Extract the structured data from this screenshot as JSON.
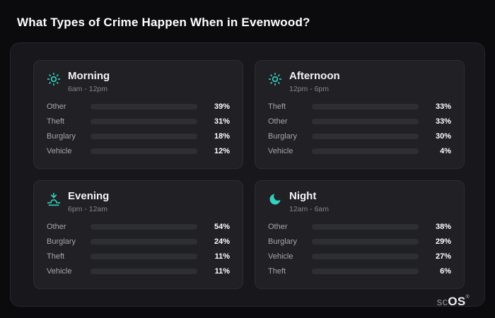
{
  "page": {
    "title": "What Types of Crime Happen When in Evenwood?"
  },
  "brand": {
    "left": "sc",
    "right": "OS",
    "reg": "®"
  },
  "colors": {
    "other": "#64748b",
    "theft": "#a855f7",
    "burglary": "#e8872e",
    "vehicle": "#3b82f6",
    "icon_accent": "#35cfbd",
    "card_bg": "#202025",
    "panel_bg": "#18181c",
    "page_bg": "#0b0b0d"
  },
  "chart_data": {
    "type": "bar",
    "title": "What Types of Crime Happen When in Evenwood?",
    "unit": "%",
    "legend_position": "none",
    "grid": false,
    "xlim": [
      0,
      100
    ],
    "groups": [
      {
        "title": "Morning",
        "subtitle": "6am - 12pm",
        "icon": "sun-icon",
        "rows": [
          {
            "label": "Other",
            "value": 39,
            "pct": "39%",
            "color": "other"
          },
          {
            "label": "Theft",
            "value": 31,
            "pct": "31%",
            "color": "theft"
          },
          {
            "label": "Burglary",
            "value": 18,
            "pct": "18%",
            "color": "burglary"
          },
          {
            "label": "Vehicle",
            "value": 12,
            "pct": "12%",
            "color": "vehicle"
          }
        ]
      },
      {
        "title": "Afternoon",
        "subtitle": "12pm - 6pm",
        "icon": "sun-icon",
        "rows": [
          {
            "label": "Theft",
            "value": 33,
            "pct": "33%",
            "color": "theft"
          },
          {
            "label": "Other",
            "value": 33,
            "pct": "33%",
            "color": "other"
          },
          {
            "label": "Burglary",
            "value": 30,
            "pct": "30%",
            "color": "burglary"
          },
          {
            "label": "Vehicle",
            "value": 4,
            "pct": "4%",
            "color": "vehicle"
          }
        ]
      },
      {
        "title": "Evening",
        "subtitle": "6pm - 12am",
        "icon": "sunset-icon",
        "rows": [
          {
            "label": "Other",
            "value": 54,
            "pct": "54%",
            "color": "other"
          },
          {
            "label": "Burglary",
            "value": 24,
            "pct": "24%",
            "color": "burglary"
          },
          {
            "label": "Theft",
            "value": 11,
            "pct": "11%",
            "color": "theft"
          },
          {
            "label": "Vehicle",
            "value": 11,
            "pct": "11%",
            "color": "vehicle"
          }
        ]
      },
      {
        "title": "Night",
        "subtitle": "12am - 6am",
        "icon": "moon-icon",
        "rows": [
          {
            "label": "Other",
            "value": 38,
            "pct": "38%",
            "color": "other"
          },
          {
            "label": "Burglary",
            "value": 29,
            "pct": "29%",
            "color": "burglary"
          },
          {
            "label": "Vehicle",
            "value": 27,
            "pct": "27%",
            "color": "vehicle"
          },
          {
            "label": "Theft",
            "value": 6,
            "pct": "6%",
            "color": "theft"
          }
        ]
      }
    ]
  }
}
